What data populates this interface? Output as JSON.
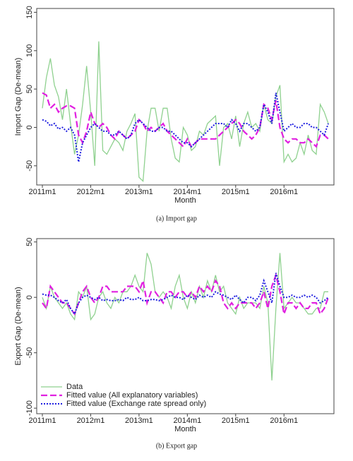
{
  "chart_data": [
    {
      "type": "line",
      "caption": "(a) Import gap",
      "x_label": "Month",
      "y_label": "Import Gap (De-mean)",
      "categories": [
        "2011m1",
        null,
        null,
        null,
        null,
        null,
        null,
        null,
        null,
        null,
        null,
        null,
        "2012m1",
        null,
        null,
        null,
        null,
        null,
        null,
        null,
        null,
        null,
        null,
        null,
        "2013m1",
        null,
        null,
        null,
        null,
        null,
        null,
        null,
        null,
        null,
        null,
        null,
        "2014m1",
        null,
        null,
        null,
        null,
        null,
        null,
        null,
        null,
        null,
        null,
        null,
        "2015m1",
        null,
        null,
        null,
        null,
        null,
        null,
        null,
        null,
        null,
        null,
        null,
        "2016m1",
        null,
        null,
        null,
        null,
        null,
        null,
        null,
        null,
        null,
        null,
        null
      ],
      "ylim": [
        -75,
        155
      ],
      "yticks": [
        -50,
        0,
        50,
        100,
        150
      ],
      "series": [
        {
          "name": "Data",
          "color": "#8fd18f",
          "style": "solid",
          "values": [
            25,
            65,
            90,
            55,
            40,
            10,
            50,
            5,
            -35,
            -10,
            30,
            80,
            20,
            -50,
            112,
            -30,
            -35,
            -25,
            -15,
            -20,
            -30,
            -5,
            5,
            18,
            -65,
            -70,
            -5,
            25,
            25,
            -5,
            25,
            25,
            -15,
            -40,
            -45,
            0,
            -10,
            -30,
            -25,
            -5,
            -10,
            5,
            10,
            15,
            -50,
            0,
            5,
            -15,
            15,
            -25,
            5,
            20,
            0,
            5,
            -5,
            30,
            10,
            5,
            40,
            55,
            -45,
            -35,
            -45,
            -40,
            -20,
            -35,
            -10,
            -30,
            -35,
            30,
            20,
            5
          ]
        },
        {
          "name": "Fitted value (All explanatory variables)",
          "color": "#e020e0",
          "style": "dashed",
          "values": [
            45,
            42,
            25,
            30,
            20,
            25,
            28,
            28,
            25,
            -10,
            -20,
            -5,
            20,
            5,
            0,
            5,
            0,
            -10,
            -15,
            -5,
            -10,
            -15,
            -10,
            -5,
            10,
            5,
            -5,
            0,
            -5,
            0,
            5,
            -5,
            -10,
            -15,
            -20,
            -25,
            -15,
            -25,
            -20,
            -15,
            -15,
            -15,
            -15,
            -15,
            -10,
            -5,
            0,
            5,
            10,
            5,
            -5,
            -10,
            -15,
            -10,
            0,
            30,
            25,
            10,
            35,
            0,
            -15,
            -20,
            -15,
            -15,
            -20,
            -20,
            -15,
            -20,
            -25,
            -10,
            -10,
            -15
          ]
        },
        {
          "name": "Fitted value (Exchange rate spread only)",
          "color": "#2020e0",
          "style": "dotted",
          "values": [
            10,
            8,
            2,
            5,
            -2,
            0,
            -5,
            0,
            -10,
            -45,
            -20,
            -10,
            0,
            5,
            0,
            -5,
            -5,
            -10,
            -10,
            -5,
            -10,
            -15,
            -10,
            5,
            10,
            5,
            0,
            -5,
            -5,
            0,
            0,
            -5,
            -5,
            -10,
            -15,
            -20,
            -20,
            -25,
            -20,
            -15,
            -10,
            -5,
            0,
            5,
            5,
            5,
            0,
            10,
            5,
            -5,
            5,
            5,
            0,
            -5,
            0,
            30,
            20,
            5,
            45,
            20,
            -5,
            0,
            5,
            0,
            0,
            5,
            5,
            0,
            0,
            -5,
            -10,
            5
          ]
        }
      ]
    },
    {
      "type": "line",
      "caption": "(b) Export gap",
      "x_label": "Month",
      "y_label": "Export Gap (De-mean)",
      "legend": "lower left",
      "categories": [
        "2011m1",
        null,
        null,
        null,
        null,
        null,
        null,
        null,
        null,
        null,
        null,
        null,
        "2012m1",
        null,
        null,
        null,
        null,
        null,
        null,
        null,
        null,
        null,
        null,
        null,
        "2013m1",
        null,
        null,
        null,
        null,
        null,
        null,
        null,
        null,
        null,
        null,
        null,
        "2014m1",
        null,
        null,
        null,
        null,
        null,
        null,
        null,
        null,
        null,
        null,
        null,
        "2015m1",
        null,
        null,
        null,
        null,
        null,
        null,
        null,
        null,
        null,
        null,
        null,
        "2016m1",
        null,
        null,
        null,
        null,
        null,
        null,
        null,
        null,
        null,
        null,
        null
      ],
      "ylim": [
        -105,
        53
      ],
      "yticks": [
        -100,
        -50,
        0,
        50
      ],
      "series": [
        {
          "name": "Data",
          "color": "#8fd18f",
          "style": "solid",
          "values": [
            0,
            -10,
            10,
            0,
            -5,
            -10,
            -5,
            -15,
            -20,
            5,
            0,
            10,
            -20,
            -15,
            0,
            5,
            -5,
            -10,
            0,
            -5,
            5,
            5,
            10,
            20,
            10,
            5,
            40,
            30,
            5,
            0,
            5,
            0,
            -10,
            10,
            20,
            0,
            -10,
            5,
            -5,
            10,
            0,
            15,
            5,
            20,
            5,
            10,
            -5,
            -10,
            -15,
            0,
            -10,
            -5,
            -5,
            -5,
            -10,
            10,
            -5,
            -75,
            -10,
            40,
            -10,
            -5,
            0,
            -5,
            -5,
            -10,
            -15,
            -15,
            -10,
            -10,
            5,
            5
          ]
        },
        {
          "name": "Fitted value (All explanatory variables)",
          "color": "#e020e0",
          "style": "dashed",
          "values": [
            -5,
            -10,
            10,
            5,
            0,
            -5,
            -5,
            -10,
            -15,
            -5,
            5,
            10,
            0,
            -5,
            0,
            10,
            10,
            5,
            5,
            5,
            5,
            10,
            10,
            10,
            5,
            15,
            -5,
            5,
            5,
            0,
            -5,
            5,
            5,
            0,
            5,
            5,
            0,
            5,
            0,
            10,
            5,
            10,
            5,
            15,
            10,
            -5,
            -10,
            -5,
            -10,
            -5,
            -5,
            -5,
            -5,
            -10,
            -5,
            5,
            -10,
            10,
            20,
            5,
            -15,
            -5,
            -5,
            -10,
            -5,
            -10,
            -10,
            -5,
            -5,
            -15,
            -10,
            0
          ]
        },
        {
          "name": "Fitted value (Exchange rate spread only)",
          "color": "#2020e0",
          "style": "dotted",
          "values": [
            3,
            2,
            2,
            0,
            -3,
            -5,
            -2,
            -10,
            -15,
            -5,
            0,
            2,
            0,
            -2,
            0,
            -3,
            -2,
            -3,
            -3,
            -2,
            -3,
            0,
            -2,
            -2,
            0,
            -3,
            -3,
            -2,
            -2,
            -3,
            -2,
            0,
            2,
            0,
            0,
            -2,
            2,
            0,
            -2,
            2,
            0,
            2,
            0,
            5,
            3,
            2,
            0,
            -2,
            2,
            -2,
            -5,
            0,
            0,
            -3,
            2,
            15,
            5,
            -5,
            22,
            10,
            0,
            0,
            2,
            0,
            0,
            2,
            0,
            2,
            0,
            -5,
            -3,
            0
          ]
        }
      ]
    }
  ]
}
